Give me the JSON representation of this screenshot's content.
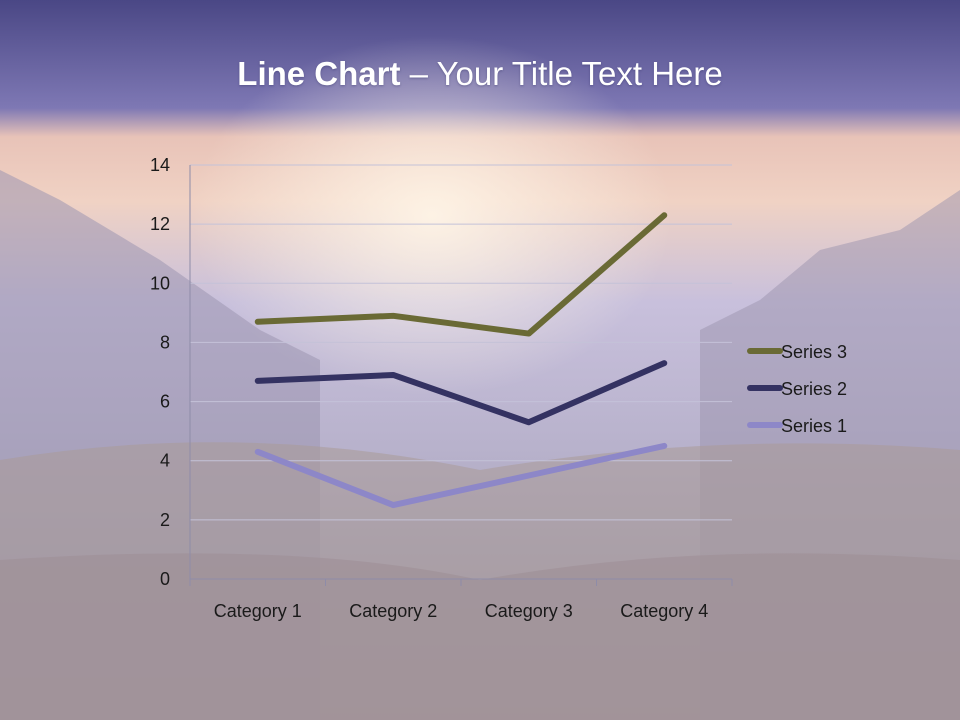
{
  "slide": {
    "title_bold": "Line Chart",
    "title_rest": " – Your Title Text Here"
  },
  "colors": {
    "header_top": "#4a4785",
    "header_bottom": "#7e78b4",
    "series_1": "#8d87c8",
    "series_2": "#343262",
    "series_3": "#6a6a35",
    "gridline": "#c4c2d8",
    "axis": "#8e8ca8"
  },
  "chart_data": {
    "type": "line",
    "title": "",
    "xlabel": "",
    "ylabel": "",
    "categories": [
      "Category 1",
      "Category 2",
      "Category 3",
      "Category 4"
    ],
    "ylim": [
      0,
      14
    ],
    "yticks": [
      0,
      2,
      4,
      6,
      8,
      10,
      12,
      14
    ],
    "grid": true,
    "legend_position": "right",
    "series": [
      {
        "name": "Series 1",
        "values": [
          4.3,
          2.5,
          3.5,
          4.5
        ],
        "color": "#8d87c8"
      },
      {
        "name": "Series 2",
        "values": [
          6.7,
          6.9,
          5.3,
          7.3
        ],
        "color": "#343262"
      },
      {
        "name": "Series 3",
        "values": [
          8.7,
          8.9,
          8.3,
          12.3
        ],
        "color": "#6a6a35"
      }
    ]
  }
}
